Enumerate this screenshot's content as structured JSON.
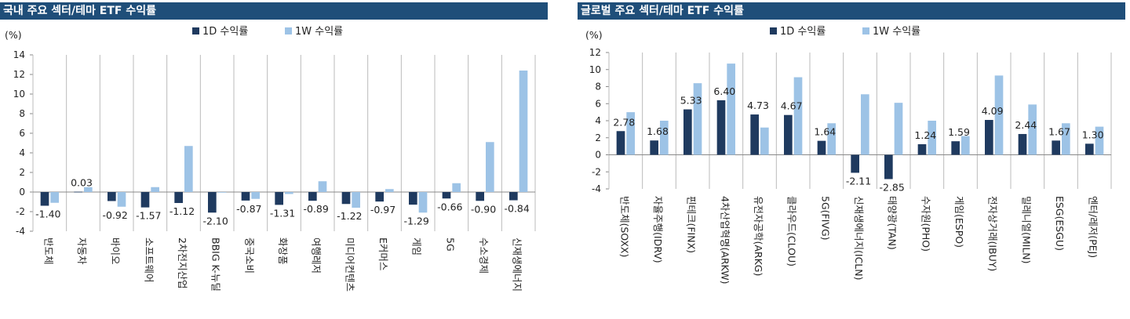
{
  "panels": [
    {
      "title": "국내 주요 섹터/테마 ETF 수익률"
    },
    {
      "title": "글로벌 주요 섹터/테마 ETF 수익률"
    }
  ],
  "colors": {
    "series_1d": "#1f3a5f",
    "series_1w": "#9dc3e6",
    "title_bg": "#1f4e79"
  },
  "chart_data": [
    {
      "type": "bar",
      "unit": "(%)",
      "categories": [
        "반도체",
        "자동차",
        "바이오",
        "소프트웨어",
        "2차전지산업",
        "BBIG K-뉴딜",
        "중국소비",
        "화장품",
        "여행레저",
        "미디어컨텐츠",
        "E커머스",
        "게임",
        "5G",
        "수소경제",
        "신재생에너지"
      ],
      "series": [
        {
          "name": "1D 수익률",
          "values": [
            -1.4,
            0.03,
            -0.92,
            -1.57,
            -1.12,
            -2.1,
            -0.87,
            -1.31,
            -0.89,
            -1.22,
            -0.97,
            -1.29,
            -0.66,
            -0.9,
            -0.84
          ]
        },
        {
          "name": "1W 수익률",
          "values": [
            -1.1,
            0.5,
            -1.5,
            0.5,
            4.7,
            0.0,
            -0.7,
            -0.2,
            1.1,
            -1.6,
            0.3,
            -2.1,
            0.9,
            5.1,
            12.4
          ]
        }
      ],
      "data_labels": [
        "-1.40",
        "0.03",
        "-0.92",
        "-1.57",
        "-1.12",
        "-2.10",
        "-0.87",
        "-1.31",
        "-0.89",
        "-1.22",
        "-0.97",
        "-1.29",
        "-0.66",
        "-0.90",
        "-0.84"
      ],
      "ylim": [
        -4,
        14
      ],
      "yticks": [
        "14",
        "12",
        "10",
        "8",
        "6",
        "4",
        "2",
        "0",
        "-2",
        "-4"
      ],
      "grid": false,
      "legend": "top-center"
    },
    {
      "type": "bar",
      "unit": "(%)",
      "categories": [
        "반도체(SOXX)",
        "자율주행(IDRV)",
        "핀테크(FINX)",
        "4차산업혁명(ARKW)",
        "유전자공학(ARKG)",
        "클라우드(CLOU)",
        "5G(FIVG)",
        "신재생에너지(ICLN)",
        "태양광(TAN)",
        "수자원(PHO)",
        "게임(ESPO)",
        "전자상거래(IBUY)",
        "밀레니얼(MILN)",
        "ESG(ESGU)",
        "엔터/레저(PEJ)"
      ],
      "series": [
        {
          "name": "1D 수익률",
          "values": [
            2.78,
            1.68,
            5.33,
            6.4,
            4.73,
            4.67,
            1.64,
            -2.11,
            -2.85,
            1.24,
            1.59,
            4.09,
            2.44,
            1.67,
            1.3
          ]
        },
        {
          "name": "1W 수익률",
          "values": [
            5.0,
            4.0,
            8.4,
            10.7,
            3.2,
            9.1,
            3.7,
            7.1,
            6.1,
            4.0,
            2.2,
            9.3,
            5.9,
            3.7,
            3.3
          ]
        }
      ],
      "data_labels": [
        "2.78",
        "1.68",
        "5.33",
        "6.40",
        "4.73",
        "4.67",
        "1.64",
        "-2.11",
        "-2.85",
        "1.24",
        "1.59",
        "4.09",
        "2.44",
        "1.67",
        "1.30"
      ],
      "ylim": [
        -4,
        12
      ],
      "yticks": [
        "12",
        "10",
        "8",
        "6",
        "4",
        "2",
        "0",
        "-2",
        "-4"
      ],
      "grid": false,
      "legend": "top-center"
    }
  ]
}
